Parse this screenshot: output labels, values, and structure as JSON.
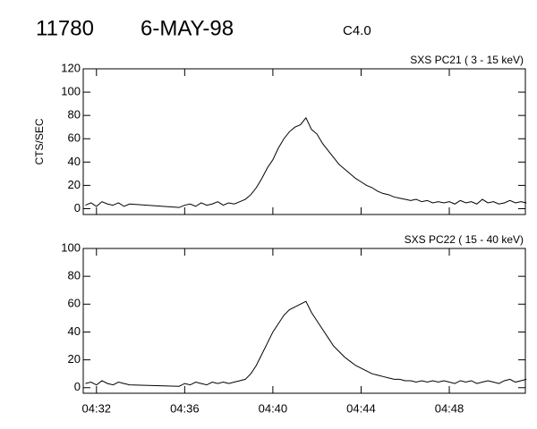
{
  "header": {
    "event": "11780",
    "date": "6-MAY-98",
    "class": "C4.0"
  },
  "chart_data": [
    {
      "type": "line",
      "title": "SXS PC21  (  3 - 15 keV)",
      "y_label": "CTS/SEC",
      "color": "#000000",
      "xlim": [
        271.4,
        291.45
      ],
      "ylim": [
        -5,
        120
      ],
      "yticks": [
        0,
        20,
        40,
        60,
        80,
        100,
        120
      ],
      "xticks": [
        272,
        276,
        280,
        284,
        288
      ],
      "x": [
        271.5,
        271.75,
        272,
        272.25,
        272.5,
        272.75,
        273,
        273.25,
        273.5,
        275.75,
        276,
        276.25,
        276.5,
        276.75,
        277,
        277.25,
        277.5,
        277.75,
        278,
        278.25,
        278.5,
        278.75,
        279,
        279.25,
        279.5,
        279.75,
        280,
        280.25,
        280.5,
        280.75,
        281,
        281.25,
        281.5,
        281.75,
        282,
        282.25,
        282.5,
        282.75,
        283,
        283.25,
        283.5,
        283.75,
        284,
        284.25,
        284.5,
        284.75,
        285,
        285.25,
        285.5,
        285.75,
        286,
        286.25,
        286.5,
        286.75,
        287,
        287.25,
        287.5,
        287.75,
        288,
        288.25,
        288.5,
        288.75,
        289,
        289.25,
        289.5,
        289.75,
        290,
        290.25,
        290.5,
        290.75,
        291,
        291.25,
        291.5
      ],
      "values": [
        3,
        5,
        2,
        6,
        4,
        3,
        5,
        2,
        4,
        1,
        3,
        4,
        2,
        5,
        3,
        4,
        6,
        3,
        5,
        4,
        6,
        8,
        12,
        18,
        26,
        35,
        42,
        52,
        60,
        66,
        70,
        72,
        78,
        68,
        64,
        56,
        50,
        44,
        38,
        34,
        30,
        26,
        23,
        20,
        18,
        15,
        13,
        12,
        10,
        9,
        8,
        7,
        8,
        6,
        7,
        5,
        6,
        5,
        6,
        4,
        7,
        5,
        6,
        4,
        8,
        5,
        6,
        4,
        5,
        7,
        5,
        6,
        5
      ]
    },
    {
      "type": "line",
      "title": "SXS PC22  ( 15 - 40 keV)",
      "color": "#000000",
      "xlim": [
        271.4,
        291.45
      ],
      "ylim": [
        -4,
        100
      ],
      "yticks": [
        0,
        20,
        40,
        60,
        80,
        100
      ],
      "xticks": [
        {
          "value": 272,
          "label": "04:32"
        },
        {
          "value": 276,
          "label": "04:36"
        },
        {
          "value": 280,
          "label": "04:40"
        },
        {
          "value": 284,
          "label": "04:44"
        },
        {
          "value": 288,
          "label": "04:48"
        }
      ],
      "x": [
        271.5,
        271.75,
        272,
        272.25,
        272.5,
        272.75,
        273,
        273.25,
        273.5,
        275.75,
        276,
        276.25,
        276.5,
        276.75,
        277,
        277.25,
        277.5,
        277.75,
        278,
        278.25,
        278.5,
        278.75,
        279,
        279.25,
        279.5,
        279.75,
        280,
        280.25,
        280.5,
        280.75,
        281,
        281.25,
        281.5,
        281.75,
        282,
        282.25,
        282.5,
        282.75,
        283,
        283.25,
        283.5,
        283.75,
        284,
        284.25,
        284.5,
        284.75,
        285,
        285.25,
        285.5,
        285.75,
        286,
        286.25,
        286.5,
        286.75,
        287,
        287.25,
        287.5,
        287.75,
        288,
        288.25,
        288.5,
        288.75,
        289,
        289.25,
        289.5,
        289.75,
        290,
        290.25,
        290.5,
        290.75,
        291,
        291.25,
        291.5
      ],
      "values": [
        3,
        4,
        2,
        5,
        3,
        2,
        4,
        3,
        2,
        1,
        3,
        2,
        4,
        3,
        2,
        4,
        3,
        4,
        3,
        4,
        5,
        6,
        10,
        16,
        24,
        32,
        40,
        46,
        52,
        56,
        58,
        60,
        62,
        54,
        48,
        42,
        36,
        30,
        26,
        22,
        19,
        16,
        14,
        12,
        10,
        9,
        8,
        7,
        6,
        6,
        5,
        5,
        4,
        5,
        4,
        5,
        4,
        5,
        4,
        3,
        5,
        4,
        5,
        3,
        4,
        5,
        4,
        3,
        5,
        6,
        4,
        5,
        6
      ]
    }
  ]
}
